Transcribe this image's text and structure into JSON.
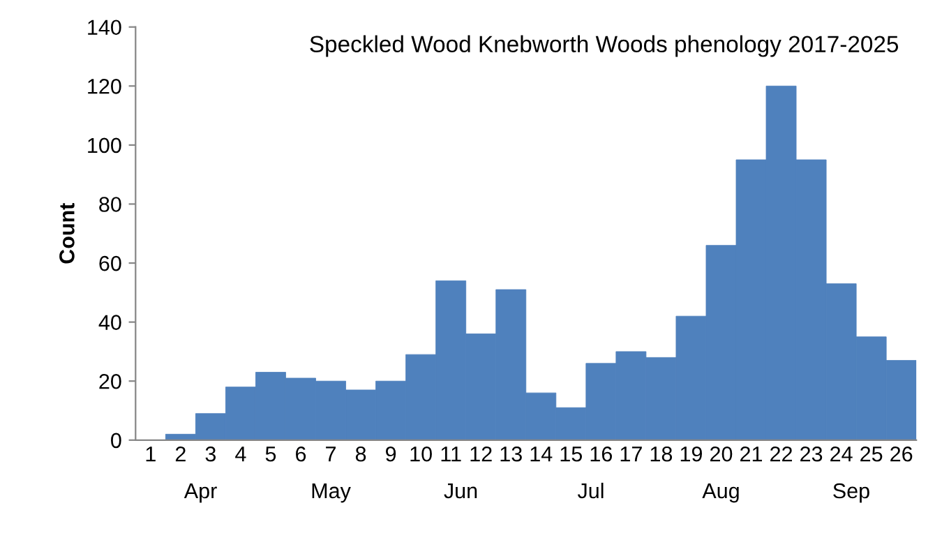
{
  "chart_data": {
    "type": "bar",
    "title": "Speckled Wood Knebworth Woods phenology 2017-2025",
    "ylabel": "Count",
    "categories": [
      "1",
      "2",
      "3",
      "4",
      "5",
      "6",
      "7",
      "8",
      "9",
      "10",
      "11",
      "12",
      "13",
      "14",
      "15",
      "16",
      "17",
      "18",
      "19",
      "20",
      "21",
      "22",
      "23",
      "24",
      "25",
      "26"
    ],
    "values": [
      0,
      2,
      9,
      18,
      23,
      21,
      20,
      17,
      20,
      29,
      54,
      36,
      51,
      16,
      11,
      26,
      30,
      28,
      42,
      66,
      95,
      120,
      95,
      53,
      35,
      27
    ],
    "color": "#4f81bd",
    "ylim": [
      0,
      140
    ],
    "yticks": [
      0,
      20,
      40,
      60,
      80,
      100,
      120,
      140
    ],
    "grid": false,
    "legend": false,
    "annotations": [
      "Apr",
      "May",
      "Jun",
      "Jul",
      "Aug",
      "Sep"
    ]
  }
}
